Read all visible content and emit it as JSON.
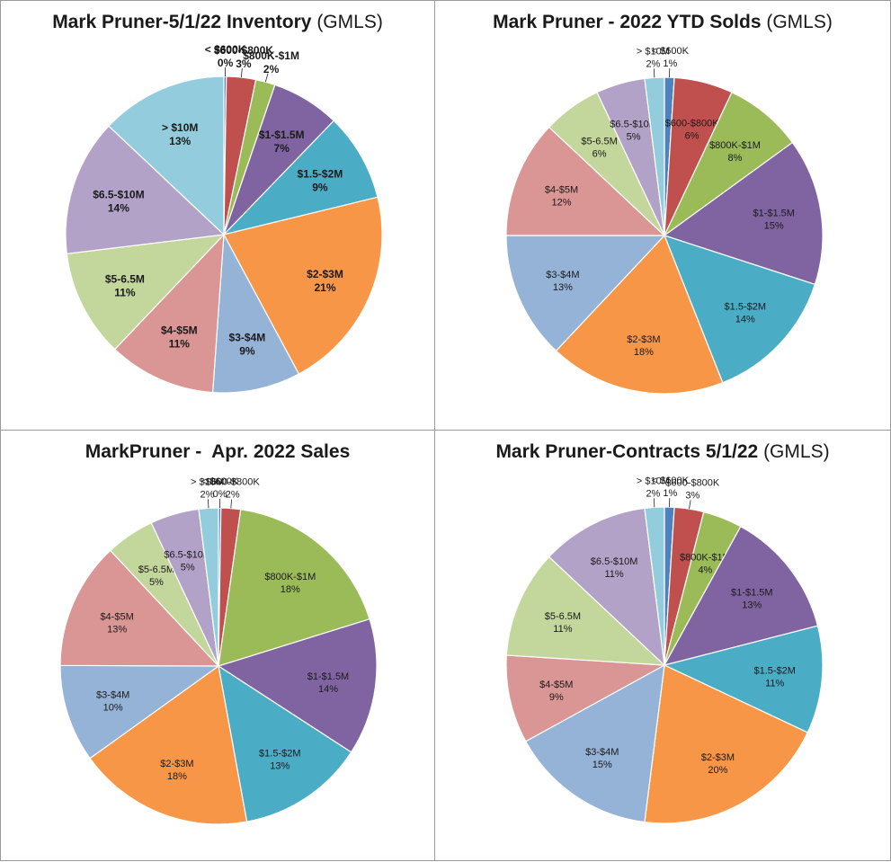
{
  "chart_data": [
    {
      "type": "pie",
      "title": "Mark Pruner-5/1/22 Inventory",
      "title_suffix": "(GMLS)",
      "label_bold": true,
      "slices": [
        {
          "label": "< $600K",
          "value": 0,
          "pct": "0%"
        },
        {
          "label": "$600-$800K",
          "value": 3,
          "pct": "3%"
        },
        {
          "label": "$800K-$1M",
          "value": 2,
          "pct": "2%"
        },
        {
          "label": "$1-$1.5M",
          "value": 7,
          "pct": "7%"
        },
        {
          "label": "$1.5-$2M",
          "value": 9,
          "pct": "9%"
        },
        {
          "label": "$2-$3M",
          "value": 21,
          "pct": "21%"
        },
        {
          "label": "$3-$4M",
          "value": 9,
          "pct": "9%"
        },
        {
          "label": "$4-$5M",
          "value": 11,
          "pct": "11%"
        },
        {
          "label": "$5-6.5M",
          "value": 11,
          "pct": "11%"
        },
        {
          "label": "$6.5-$10M",
          "value": 14,
          "pct": "14%"
        },
        {
          "label": "> $10M",
          "value": 13,
          "pct": "13%"
        }
      ]
    },
    {
      "type": "pie",
      "title": "Mark Pruner - 2022 YTD Solds",
      "title_suffix": "(GMLS)",
      "label_bold": false,
      "slices": [
        {
          "label": "< $600K",
          "value": 1,
          "pct": "1%"
        },
        {
          "label": "$600-$800K",
          "value": 6,
          "pct": "6%"
        },
        {
          "label": "$800K-$1M",
          "value": 8,
          "pct": "8%"
        },
        {
          "label": "$1-$1.5M",
          "value": 15,
          "pct": "15%"
        },
        {
          "label": "$1.5-$2M",
          "value": 14,
          "pct": "14%"
        },
        {
          "label": "$2-$3M",
          "value": 18,
          "pct": "18%"
        },
        {
          "label": "$3-$4M",
          "value": 13,
          "pct": "13%"
        },
        {
          "label": "$4-$5M",
          "value": 12,
          "pct": "12%"
        },
        {
          "label": "$5-6.5M",
          "value": 6,
          "pct": "6%"
        },
        {
          "label": "$6.5-$10M",
          "value": 5,
          "pct": "5%"
        },
        {
          "label": "> $10M",
          "value": 2,
          "pct": "2%"
        }
      ]
    },
    {
      "type": "pie",
      "title": "MarkPruner -  Apr. 2022 Sales",
      "title_suffix": "",
      "label_bold": false,
      "slices": [
        {
          "label": "< $600K",
          "value": 0,
          "pct": "0%"
        },
        {
          "label": "$600-$800K",
          "value": 2,
          "pct": "2%"
        },
        {
          "label": "$800K-$1M",
          "value": 18,
          "pct": "18%"
        },
        {
          "label": "$1-$1.5M",
          "value": 14,
          "pct": "14%"
        },
        {
          "label": "$1.5-$2M",
          "value": 13,
          "pct": "13%"
        },
        {
          "label": "$2-$3M",
          "value": 18,
          "pct": "18%"
        },
        {
          "label": "$3-$4M",
          "value": 10,
          "pct": "10%"
        },
        {
          "label": "$4-$5M",
          "value": 13,
          "pct": "13%"
        },
        {
          "label": "$5-6.5M",
          "value": 5,
          "pct": "5%"
        },
        {
          "label": "$6.5-$10M",
          "value": 5,
          "pct": "5%"
        },
        {
          "label": "> $10M",
          "value": 2,
          "pct": "2%"
        }
      ]
    },
    {
      "type": "pie",
      "title": "Mark Pruner-Contracts 5/1/22",
      "title_suffix": "(GMLS)",
      "label_bold": false,
      "slices": [
        {
          "label": "< $600K",
          "value": 1,
          "pct": "1%"
        },
        {
          "label": "$600-$800K",
          "value": 3,
          "pct": "3%"
        },
        {
          "label": "$800K-$1M",
          "value": 4,
          "pct": "4%"
        },
        {
          "label": "$1-$1.5M",
          "value": 13,
          "pct": "13%"
        },
        {
          "label": "$1.5-$2M",
          "value": 11,
          "pct": "11%"
        },
        {
          "label": "$2-$3M",
          "value": 20,
          "pct": "20%"
        },
        {
          "label": "$3-$4M",
          "value": 15,
          "pct": "15%"
        },
        {
          "label": "$4-$5M",
          "value": 9,
          "pct": "9%"
        },
        {
          "label": "$5-6.5M",
          "value": 11,
          "pct": "11%"
        },
        {
          "label": "$6.5-$10M",
          "value": 11,
          "pct": "11%"
        },
        {
          "label": "> $10M",
          "value": 2,
          "pct": "2%"
        }
      ]
    }
  ],
  "colors": [
    "#4f81bd",
    "#c0504d",
    "#9bbb59",
    "#8064a2",
    "#4bacc6",
    "#f79646",
    "#95b3d7",
    "#d99694",
    "#c3d69b",
    "#b3a2c7",
    "#93cddd"
  ]
}
